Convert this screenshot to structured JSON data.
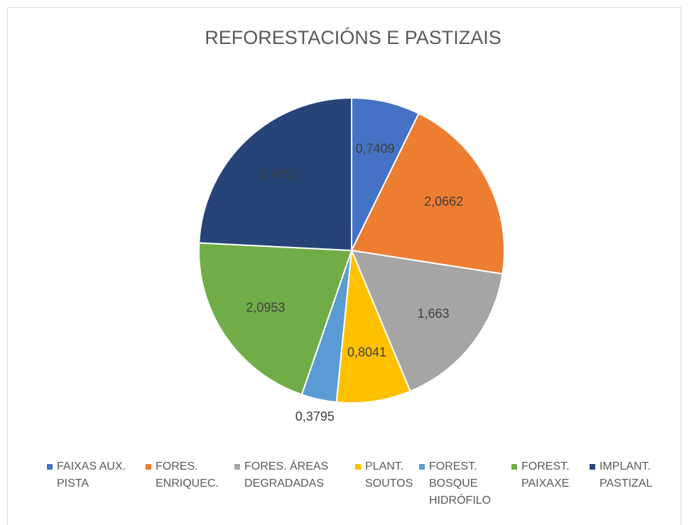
{
  "chart_data": {
    "type": "pie",
    "title": "REFORESTACIÓNS E PASTIZAIS",
    "categories": [
      "FAIXAS AUX. PISTA",
      "FORES. ENRIQUEC.",
      "FORES. ÁREAS DEGRADADAS",
      "PLANT. SOUTOS",
      "FOREST. BOSQUE HIDRÓFILO",
      "FOREST. PAIXAXE",
      "IMPLANT. PASTIZAL"
    ],
    "values": [
      0.7409,
      2.0662,
      1.663,
      0.8041,
      0.3795,
      2.0953,
      2.4752
    ],
    "value_labels": [
      "0,7409",
      "2,0662",
      "1,663",
      "0,8041",
      "0,3795",
      "2,0953",
      "2,4752"
    ],
    "colors": [
      "#4472c4",
      "#ed7d31",
      "#a5a5a5",
      "#ffc000",
      "#5b9bd5",
      "#70ad47",
      "#264478"
    ],
    "legend": "bottom"
  }
}
